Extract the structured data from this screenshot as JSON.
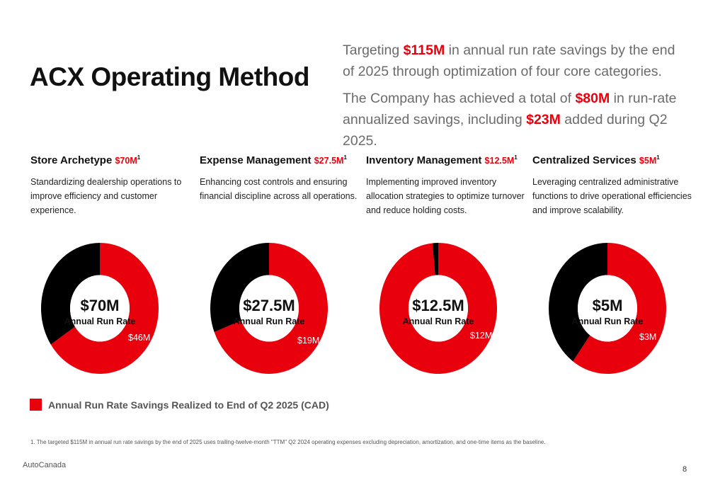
{
  "title": "ACX Operating Method",
  "intro": {
    "p1": {
      "pre": "Targeting ",
      "amount": "$115M",
      "post": " in annual run rate savings by the end of 2025 through optimization of four core categories."
    },
    "p2": {
      "pre": "The Company has achieved a total of ",
      "amount1": "$80M",
      "mid": " in run-rate annualized savings, including ",
      "amount2": "$23M",
      "post": " added during Q2 2025."
    }
  },
  "colors": {
    "realized": "#e8000d",
    "remaining": "#000000"
  },
  "categories": [
    {
      "name": "Store Archetype",
      "amount": "$70M",
      "sup": "1",
      "desc": "Standardizing dealership operations to improve efficiency and customer experience.",
      "center_value": "$70M",
      "center_label": "Annual Run Rate",
      "realized_label": "$46M"
    },
    {
      "name": "Expense Management",
      "amount": "$27.5M",
      "sup": "1",
      "desc": "Enhancing cost controls and ensuring financial discipline across all operations.",
      "center_value": "$27.5M",
      "center_label": "Annual Run Rate",
      "realized_label": "$19M"
    },
    {
      "name": "Inventory Management",
      "amount": "$12.5M",
      "sup": "1",
      "desc": "Implementing improved inventory allocation strategies to optimize turnover and reduce holding costs.",
      "center_value": "$12.5M",
      "center_label": "Annual Run Rate",
      "realized_label": "$12M"
    },
    {
      "name": "Centralized Services",
      "amount": "$5M",
      "sup": "1",
      "desc": "Leveraging centralized administrative functions to drive operational efficiencies and improve scalability.",
      "center_value": "$5M",
      "center_label": "Annual Run Rate",
      "realized_label": "$3M"
    }
  ],
  "chart_data": [
    {
      "type": "pie",
      "categories": [
        "Realized",
        "Remaining"
      ],
      "values": [
        46,
        24
      ],
      "total": 70,
      "unit": "$M"
    },
    {
      "type": "pie",
      "categories": [
        "Realized",
        "Remaining"
      ],
      "values": [
        19,
        8.5
      ],
      "total": 27.5,
      "unit": "$M"
    },
    {
      "type": "pie",
      "categories": [
        "Realized",
        "Remaining"
      ],
      "values": [
        12.3,
        0.2
      ],
      "total": 12.5,
      "unit": "$M"
    },
    {
      "type": "pie",
      "categories": [
        "Realized",
        "Remaining"
      ],
      "values": [
        3,
        2
      ],
      "total": 5,
      "unit": "$M"
    }
  ],
  "legend": {
    "label": "Annual Run Rate Savings Realized to End of Q2 2025 (CAD)"
  },
  "footnote": "1.  The targeted $115M in annual run rate savings by the end of 2025 uses trailing-twelve-month \"TTM\" Q2 2024 operating expenses excluding depreciation, amortization, and one-time items as the baseline.",
  "footer": {
    "brand": "AutoCanada",
    "page": "8"
  }
}
